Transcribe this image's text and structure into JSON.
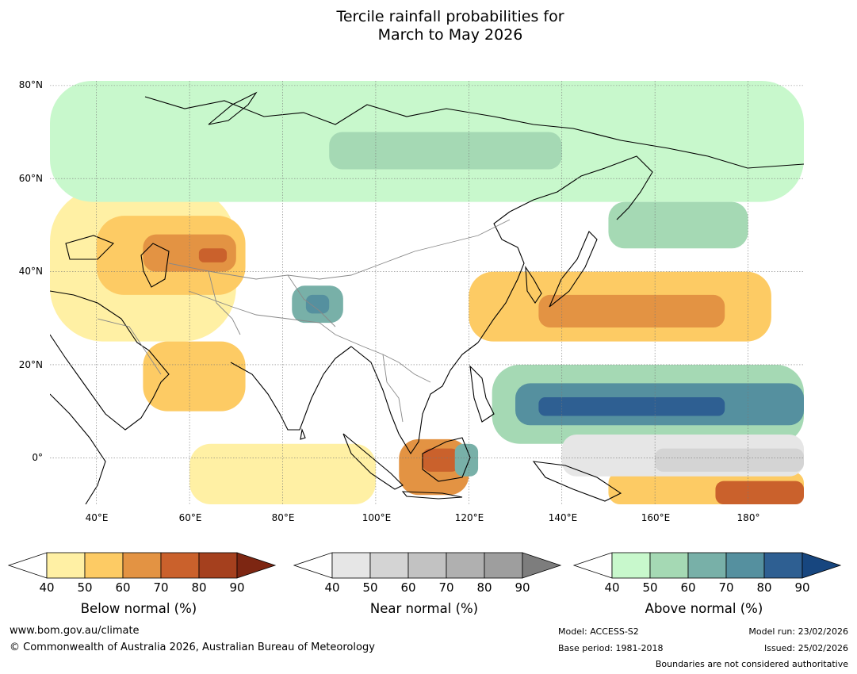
{
  "title": {
    "line1": "Tercile rainfall probabilities for",
    "line2": "March to May 2026"
  },
  "map": {
    "lon_range": [
      30,
      192
    ],
    "lat_range": [
      -10,
      81
    ],
    "lat_labels": [
      "80°N",
      "60°N",
      "40°N",
      "20°N",
      "0°"
    ],
    "lat_values": [
      80,
      60,
      40,
      20,
      0
    ],
    "lon_labels": [
      "40°E",
      "60°E",
      "80°E",
      "100°E",
      "120°E",
      "140°E",
      "160°E",
      "180°"
    ],
    "lon_values": [
      40,
      60,
      80,
      100,
      120,
      140,
      160,
      180
    ],
    "regions": [
      {
        "category": "below",
        "level": 1,
        "lon": [
          30,
          70
        ],
        "lat": [
          25,
          58
        ]
      },
      {
        "category": "below",
        "level": 2,
        "lon": [
          40,
          72
        ],
        "lat": [
          35,
          52
        ]
      },
      {
        "category": "below",
        "level": 3,
        "lon": [
          50,
          70
        ],
        "lat": [
          40,
          48
        ]
      },
      {
        "category": "below",
        "level": 4,
        "lon": [
          62,
          68
        ],
        "lat": [
          42,
          45
        ]
      },
      {
        "category": "below",
        "level": 2,
        "lon": [
          50,
          72
        ],
        "lat": [
          10,
          25
        ]
      },
      {
        "category": "below",
        "level": 1,
        "lon": [
          60,
          100
        ],
        "lat": [
          -10,
          3
        ]
      },
      {
        "category": "below",
        "level": 3,
        "lon": [
          105,
          120
        ],
        "lat": [
          -8,
          4
        ]
      },
      {
        "category": "below",
        "level": 4,
        "lon": [
          110,
          118
        ],
        "lat": [
          -3,
          2
        ]
      },
      {
        "category": "below",
        "level": 2,
        "lon": [
          120,
          185
        ],
        "lat": [
          25,
          40
        ]
      },
      {
        "category": "below",
        "level": 3,
        "lon": [
          135,
          175
        ],
        "lat": [
          28,
          35
        ]
      },
      {
        "category": "below",
        "level": 2,
        "lon": [
          150,
          192
        ],
        "lat": [
          -10,
          -3
        ]
      },
      {
        "category": "below",
        "level": 4,
        "lon": [
          173,
          192
        ],
        "lat": [
          -10,
          -5
        ]
      },
      {
        "category": "above",
        "level": 1,
        "lon": [
          30,
          192
        ],
        "lat": [
          55,
          81
        ]
      },
      {
        "category": "above",
        "level": 2,
        "lon": [
          90,
          140
        ],
        "lat": [
          62,
          70
        ]
      },
      {
        "category": "above",
        "level": 2,
        "lon": [
          150,
          180
        ],
        "lat": [
          45,
          55
        ]
      },
      {
        "category": "above",
        "level": 3,
        "lon": [
          82,
          93
        ],
        "lat": [
          29,
          37
        ]
      },
      {
        "category": "above",
        "level": 4,
        "lon": [
          85,
          90
        ],
        "lat": [
          31,
          35
        ]
      },
      {
        "category": "above",
        "level": 2,
        "lon": [
          125,
          192
        ],
        "lat": [
          3,
          20
        ]
      },
      {
        "category": "above",
        "level": 4,
        "lon": [
          130,
          192
        ],
        "lat": [
          7,
          16
        ]
      },
      {
        "category": "above",
        "level": 5,
        "lon": [
          135,
          175
        ],
        "lat": [
          9,
          13
        ]
      },
      {
        "category": "above",
        "level": 3,
        "lon": [
          117,
          122
        ],
        "lat": [
          -4,
          3
        ]
      },
      {
        "category": "near",
        "level": 1,
        "lon": [
          140,
          192
        ],
        "lat": [
          -4,
          5
        ]
      },
      {
        "category": "near",
        "level": 2,
        "lon": [
          160,
          192
        ],
        "lat": [
          -3,
          2
        ]
      }
    ]
  },
  "legend": {
    "below": {
      "title": "Below normal (%)",
      "ticks": [
        "40",
        "50",
        "60",
        "70",
        "80",
        "90"
      ],
      "colors": [
        "#fff0a4",
        "#fdcb64",
        "#e39343",
        "#ca612c",
        "#a5401e",
        "#7d2612"
      ]
    },
    "near": {
      "title": "Near normal (%)",
      "ticks": [
        "40",
        "50",
        "60",
        "70",
        "80",
        "90"
      ],
      "colors": [
        "#e6e6e6",
        "#d4d4d4",
        "#c2c2c2",
        "#b0b0b0",
        "#9e9e9e",
        "#7d7d7d"
      ]
    },
    "above": {
      "title": "Above normal (%)",
      "ticks": [
        "40",
        "50",
        "60",
        "70",
        "80",
        "90"
      ],
      "colors": [
        "#c8f8cc",
        "#a5d9b4",
        "#78b0a8",
        "#55909f",
        "#2e5f92",
        "#17467f"
      ]
    }
  },
  "footer": {
    "website": "www.bom.gov.au/climate",
    "copyright": "© Commonwealth of Australia 2026, Australian Bureau of Meteorology",
    "model": "Model: ACCESS-S2",
    "base_period": "Base period: 1981-2018",
    "model_run": "Model run: 23/02/2026",
    "issued": "Issued: 25/02/2026",
    "disclaimer": "Boundaries are not considered authoritative"
  }
}
